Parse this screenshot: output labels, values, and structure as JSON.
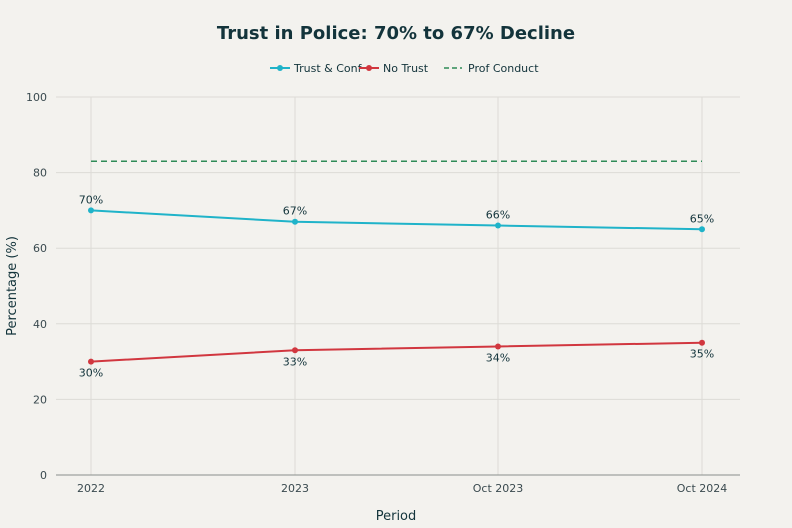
{
  "chart_data": {
    "type": "line",
    "title": "Trust in Police: 70% to 67% Decline",
    "xlabel": "Period",
    "ylabel": "Percentage (%)",
    "categories": [
      "2022",
      "2023",
      "Oct 2023",
      "Oct 2024"
    ],
    "ylim": [
      0,
      100
    ],
    "yticks": [
      0,
      20,
      40,
      60,
      80,
      100
    ],
    "grid": true,
    "legend_position": "top-center",
    "series": [
      {
        "name": "Trust & Conf",
        "color": "#1fb3c9",
        "style": "solid-markers",
        "values": [
          70,
          67,
          66,
          65
        ],
        "labels": [
          "70%",
          "67%",
          "66%",
          "65%"
        ],
        "label_position": "above"
      },
      {
        "name": "No Trust",
        "color": "#d1373f",
        "style": "solid-markers",
        "values": [
          30,
          33,
          34,
          35
        ],
        "labels": [
          "30%",
          "33%",
          "34%",
          "35%"
        ],
        "label_position": "below"
      },
      {
        "name": "Prof Conduct",
        "color": "#2e8b57",
        "style": "dashed",
        "values": [
          83,
          83,
          83,
          83
        ],
        "labels": [],
        "label_position": "none"
      }
    ]
  }
}
